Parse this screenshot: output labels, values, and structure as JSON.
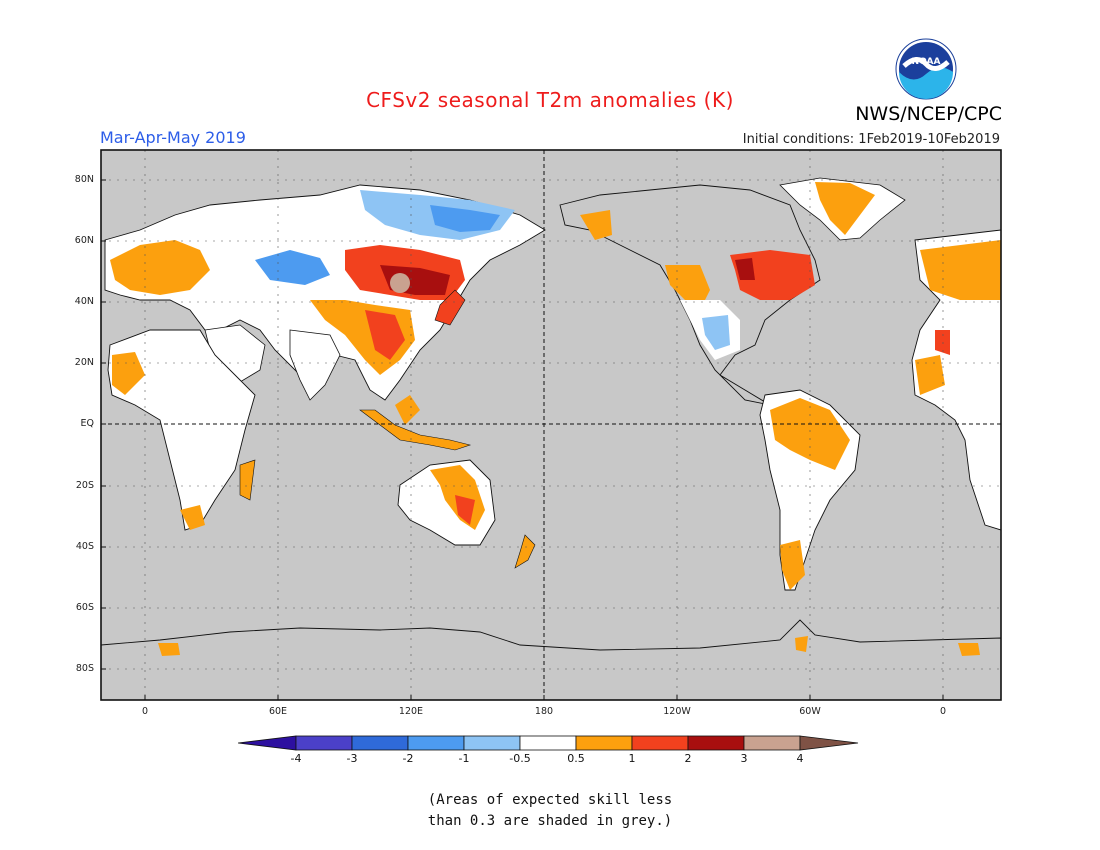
{
  "title": "CFSv2 seasonal T2m anomalies (K)",
  "organization": "NWS/NCEP/CPC",
  "logo_text": "NOAA",
  "season": "Mar-Apr-May 2019",
  "initial_conditions": "Initial conditions: 1Feb2019-10Feb2019",
  "map": {
    "projection": "equirectangular",
    "lon_range": [
      "20W",
      "0",
      "360 (shifted: 0E to 20E wrap)"
    ],
    "lat_labels": [
      "80N",
      "60N",
      "40N",
      "20N",
      "EQ",
      "20S",
      "40S",
      "60S",
      "80S"
    ],
    "lon_labels": [
      "0",
      "60E",
      "120E",
      "180",
      "120W",
      "60W",
      "0"
    ],
    "colors": {
      "no_skill": "#c8c8c8",
      "neutral": "#ffffff",
      "cold_0_5_1": "#8ec4f4",
      "cold_1_2": "#4d9bf0",
      "warm_0_5_1": "#fca00e",
      "warm_1_2": "#f2411e",
      "warm_2_3": "#a80f0f",
      "warm_3_4": "#c9a290"
    }
  },
  "colorbar": {
    "labels": [
      "-4",
      "-3",
      "-2",
      "-1",
      "-0.5",
      "0.5",
      "1",
      "2",
      "3",
      "4"
    ],
    "colors": [
      "#2d10a0",
      "#4b40c8",
      "#2f6ad9",
      "#4d9bf0",
      "#8ec4f4",
      "#ffffff",
      "#fca00e",
      "#f2411e",
      "#a80f0f",
      "#c9a290",
      "#7f5245"
    ]
  },
  "note_line1": "(Areas of expected skill less",
  "note_line2": "than 0.3 are shaded in grey.)"
}
